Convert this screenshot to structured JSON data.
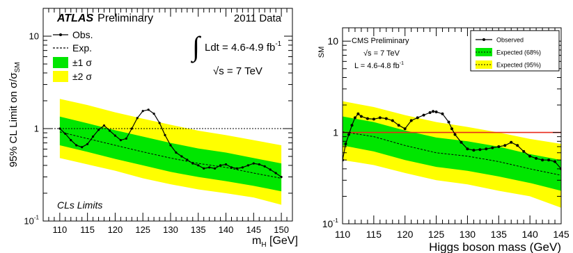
{
  "chart_data": [
    {
      "type": "line",
      "experiment": "ATLAS",
      "status": "Preliminary",
      "data_period": "2011 Data",
      "lumi_label": "Ldt = 4.6-4.9 fb",
      "lumi_exponent": "-1",
      "energy_label": "s = 7 TeV",
      "method_label": "CLs Limits",
      "ylabel": "95% CL Limit on σ/σ",
      "ylabel_sub": "SM",
      "xlabel": "m",
      "xlabel_sub": "H",
      "xlabel_unit": " [GeV]",
      "yscale": "log",
      "xlim": [
        107,
        152
      ],
      "ylim": [
        0.1,
        20
      ],
      "x_ticks": [
        110,
        115,
        120,
        125,
        130,
        135,
        140,
        145,
        150
      ],
      "y_ticks": [
        {
          "value": 0.1,
          "label": "10",
          "sup": "-1"
        },
        {
          "value": 1,
          "label": "1",
          "sup": ""
        },
        {
          "value": 10,
          "label": "10",
          "sup": ""
        }
      ],
      "reference_line": 1,
      "legend": {
        "position": "top-left",
        "entries": [
          {
            "label": "Obs.",
            "style": "solid-marker"
          },
          {
            "label": "Exp.",
            "style": "dashed"
          },
          {
            "label": "±1 σ",
            "style": "green-band"
          },
          {
            "label": "±2 σ",
            "style": "yellow-band"
          }
        ]
      },
      "colors": {
        "band_1sigma": "#00e600",
        "band_2sigma": "#ffff00",
        "observed": "#000000",
        "expected": "#000000"
      },
      "expected": {
        "x": [
          110,
          115,
          120,
          125,
          130,
          135,
          140,
          145,
          150
        ],
        "y": [
          0.92,
          0.78,
          0.66,
          0.56,
          0.48,
          0.42,
          0.38,
          0.33,
          0.29
        ]
      },
      "band_1sigma": {
        "x": [
          110,
          115,
          120,
          125,
          130,
          135,
          140,
          145,
          150
        ],
        "lower": [
          0.66,
          0.56,
          0.47,
          0.4,
          0.34,
          0.3,
          0.27,
          0.24,
          0.21
        ],
        "upper": [
          1.35,
          1.14,
          0.96,
          0.82,
          0.7,
          0.61,
          0.55,
          0.48,
          0.42
        ]
      },
      "band_2sigma": {
        "x": [
          110,
          115,
          120,
          125,
          130,
          135,
          140,
          145,
          150
        ],
        "lower": [
          0.48,
          0.41,
          0.35,
          0.29,
          0.25,
          0.22,
          0.2,
          0.18,
          0.15
        ],
        "upper": [
          2.1,
          1.8,
          1.5,
          1.28,
          1.1,
          0.95,
          0.85,
          0.75,
          0.66
        ]
      },
      "observed": {
        "x": [
          110,
          111,
          112,
          113,
          114,
          115,
          116,
          117,
          118,
          119,
          120,
          121,
          122,
          123,
          124,
          125,
          126,
          127,
          128,
          129,
          130,
          131,
          132,
          133,
          134,
          135,
          136,
          137,
          138,
          139,
          140,
          141,
          142,
          143,
          144,
          145,
          146,
          147,
          148,
          149,
          150
        ],
        "y": [
          1.0,
          0.88,
          0.75,
          0.66,
          0.63,
          0.68,
          0.82,
          0.97,
          1.08,
          0.95,
          0.84,
          0.75,
          0.78,
          1.0,
          1.3,
          1.55,
          1.6,
          1.45,
          1.15,
          0.85,
          0.66,
          0.55,
          0.5,
          0.46,
          0.42,
          0.4,
          0.37,
          0.38,
          0.37,
          0.4,
          0.41,
          0.38,
          0.37,
          0.38,
          0.4,
          0.42,
          0.41,
          0.39,
          0.36,
          0.33,
          0.3
        ]
      }
    },
    {
      "type": "line",
      "experiment": "CMS Preliminary",
      "energy_label": "s = 7 TeV",
      "lumi_label": "L = 4.6-4.8 fb",
      "lumi_exponent": "-1",
      "ylabel_fragment": "SM",
      "xlabel": "Higgs boson mass (GeV)",
      "yscale": "log",
      "xlim": [
        110,
        145
      ],
      "ylim": [
        0.1,
        14
      ],
      "x_ticks": [
        110,
        115,
        120,
        125,
        130,
        135,
        140,
        145
      ],
      "y_ticks": [
        {
          "value": 0.1,
          "label": "10",
          "sup": "-1"
        },
        {
          "value": 1,
          "label": "1",
          "sup": ""
        },
        {
          "value": 10,
          "label": "10",
          "sup": ""
        }
      ],
      "reference_line": 1,
      "legend": {
        "position": "top-right",
        "entries": [
          {
            "label": "Observed",
            "style": "solid-marker"
          },
          {
            "label": "Expected (68%)",
            "style": "green-band-dashed"
          },
          {
            "label": "Expected (95%)",
            "style": "yellow-band-dashed"
          }
        ]
      },
      "colors": {
        "band_1sigma": "#00e600",
        "band_2sigma": "#ffff00",
        "observed": "#000000",
        "reference": "#e8291b"
      },
      "expected": {
        "x": [
          110,
          115,
          120,
          125,
          130,
          135,
          140,
          145
        ],
        "y": [
          1.02,
          0.9,
          0.72,
          0.6,
          0.55,
          0.48,
          0.4,
          0.34
        ]
      },
      "band_1sigma": {
        "x": [
          110,
          115,
          120,
          125,
          130,
          135,
          140,
          145
        ],
        "lower": [
          0.72,
          0.62,
          0.5,
          0.42,
          0.38,
          0.33,
          0.28,
          0.23
        ],
        "upper": [
          1.5,
          1.3,
          1.05,
          0.88,
          0.8,
          0.7,
          0.58,
          0.5
        ]
      },
      "band_2sigma": {
        "x": [
          110,
          115,
          120,
          125,
          130,
          135,
          140,
          145
        ],
        "lower": [
          0.5,
          0.44,
          0.36,
          0.3,
          0.27,
          0.23,
          0.2,
          0.15
        ],
        "upper": [
          2.2,
          1.9,
          1.55,
          1.3,
          1.15,
          1.0,
          0.85,
          0.75
        ]
      },
      "observed": {
        "x": [
          110,
          110.5,
          111,
          111.5,
          112,
          112.5,
          113,
          114,
          115,
          116,
          117,
          118,
          119,
          120,
          121,
          122,
          123,
          124,
          124.5,
          125,
          126,
          127,
          127.5,
          128,
          129,
          130,
          131,
          132,
          133,
          134,
          135,
          136,
          137,
          138,
          139,
          140,
          141,
          142,
          143,
          144,
          145
        ],
        "y": [
          0.5,
          0.75,
          0.95,
          1.2,
          1.45,
          1.6,
          1.5,
          1.42,
          1.4,
          1.45,
          1.42,
          1.35,
          1.2,
          1.1,
          1.35,
          1.45,
          1.55,
          1.65,
          1.7,
          1.68,
          1.6,
          1.3,
          1.1,
          0.95,
          0.78,
          0.66,
          0.64,
          0.65,
          0.66,
          0.68,
          0.7,
          0.72,
          0.78,
          0.72,
          0.62,
          0.55,
          0.52,
          0.5,
          0.5,
          0.48,
          0.4
        ]
      }
    }
  ]
}
